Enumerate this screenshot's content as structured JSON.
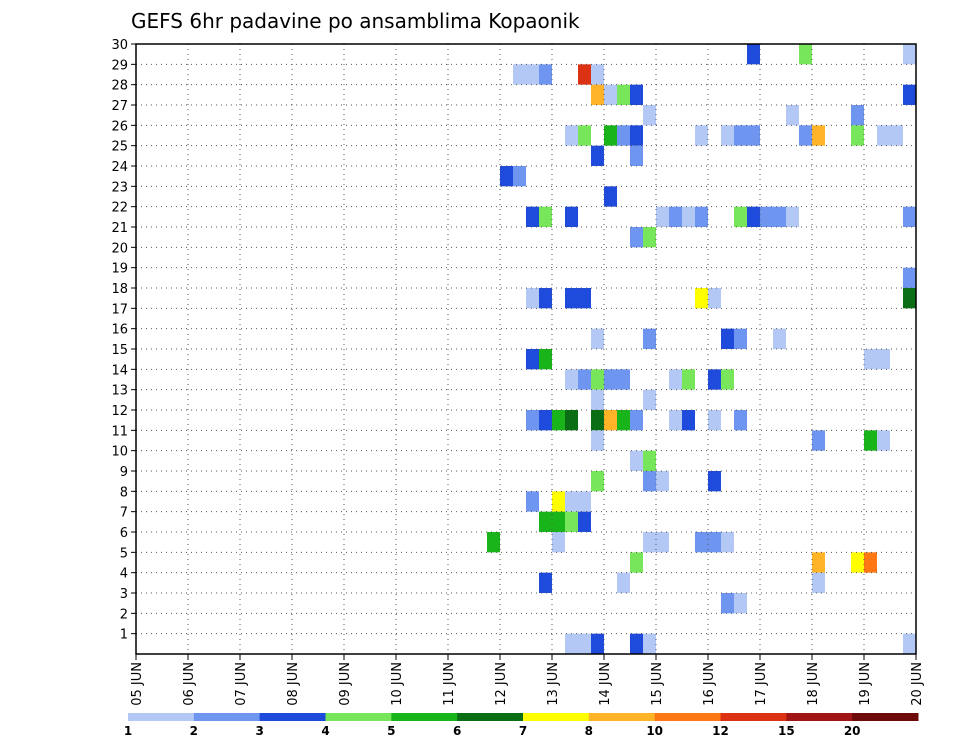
{
  "chart_data": {
    "type": "heatmap",
    "title": "GEFS 6hr padavine po ansamblima Kopaonik",
    "xlabel": "",
    "ylabel": "",
    "x_ticks": [
      "05 JUN",
      "06 JUN",
      "07 JUN",
      "08 JUN",
      "09 JUN",
      "10 JUN",
      "11 JUN",
      "12 JUN",
      "13 JUN",
      "14 JUN",
      "15 JUN",
      "16 JUN",
      "17 JUN",
      "18 JUN",
      "19 JUN",
      "20 JUN"
    ],
    "y_ticks": [
      "1",
      "2",
      "3",
      "4",
      "5",
      "6",
      "7",
      "8",
      "9",
      "10",
      "11",
      "12",
      "13",
      "14",
      "15",
      "16",
      "17",
      "18",
      "19",
      "20",
      "21",
      "22",
      "23",
      "24",
      "25",
      "26",
      "27",
      "28",
      "29",
      "30"
    ],
    "x_range": [
      "2024-06-05 00:00",
      "2024-06-20 00:00"
    ],
    "y_range": [
      0,
      30
    ],
    "grid": true,
    "time_step_hours": 6,
    "legend": {
      "placement": "bottom",
      "labels": [
        "1",
        "2",
        "3",
        "4",
        "5",
        "6",
        "7",
        "8",
        "10",
        "12",
        "15",
        "20"
      ],
      "colors": [
        "#b4c8f5",
        "#6e96f0",
        "#1e4bdc",
        "#78e65a",
        "#19b419",
        "#0a6e14",
        "#ffff00",
        "#ffb428",
        "#ff7814",
        "#dc3214",
        "#a01414",
        "#6e0a0a"
      ]
    },
    "cells_note": "Each cell: [day_offset from 05 JUN 00Z in days, ensemble member, color class index 0-11]",
    "cells": [
      [
        7.25,
        29,
        0
      ],
      [
        7.5,
        29,
        0
      ],
      [
        7.75,
        29,
        1
      ],
      [
        8.5,
        29,
        9
      ],
      [
        8.75,
        29,
        0
      ],
      [
        8.75,
        28,
        7
      ],
      [
        9.0,
        28,
        0
      ],
      [
        9.25,
        28,
        3
      ],
      [
        9.5,
        28,
        2
      ],
      [
        14.75,
        28,
        2
      ],
      [
        9.75,
        27,
        0
      ],
      [
        12.5,
        27,
        0
      ],
      [
        13.75,
        27,
        1
      ],
      [
        8.25,
        26,
        0
      ],
      [
        8.5,
        26,
        3
      ],
      [
        9.0,
        26,
        4
      ],
      [
        9.25,
        26,
        1
      ],
      [
        9.5,
        26,
        2
      ],
      [
        10.75,
        26,
        0
      ],
      [
        11.25,
        26,
        0
      ],
      [
        11.5,
        26,
        1
      ],
      [
        11.75,
        26,
        1
      ],
      [
        12.75,
        26,
        1
      ],
      [
        13.0,
        26,
        7
      ],
      [
        13.75,
        26,
        3
      ],
      [
        14.25,
        26,
        0
      ],
      [
        14.5,
        26,
        0
      ],
      [
        8.75,
        25,
        2
      ],
      [
        9.5,
        25,
        1
      ],
      [
        7.0,
        24,
        2
      ],
      [
        7.25,
        24,
        1
      ],
      [
        9.0,
        23,
        2
      ],
      [
        7.5,
        22,
        2
      ],
      [
        7.75,
        22,
        3
      ],
      [
        8.25,
        22,
        2
      ],
      [
        10.0,
        22,
        0
      ],
      [
        10.25,
        22,
        1
      ],
      [
        10.5,
        22,
        0
      ],
      [
        10.75,
        22,
        1
      ],
      [
        11.5,
        22,
        3
      ],
      [
        11.75,
        22,
        2
      ],
      [
        12.0,
        22,
        1
      ],
      [
        12.25,
        22,
        1
      ],
      [
        12.5,
        22,
        0
      ],
      [
        14.75,
        22,
        1
      ],
      [
        9.5,
        21,
        1
      ],
      [
        9.75,
        21,
        3
      ],
      [
        14.75,
        19,
        1
      ],
      [
        7.5,
        18,
        0
      ],
      [
        7.75,
        18,
        2
      ],
      [
        8.25,
        18,
        2
      ],
      [
        8.5,
        18,
        2
      ],
      [
        10.75,
        18,
        6
      ],
      [
        11.0,
        18,
        0
      ],
      [
        14.75,
        18,
        5
      ],
      [
        8.75,
        16,
        0
      ],
      [
        9.75,
        16,
        1
      ],
      [
        11.25,
        16,
        2
      ],
      [
        11.5,
        16,
        1
      ],
      [
        12.25,
        16,
        0
      ],
      [
        7.5,
        15,
        2
      ],
      [
        7.75,
        15,
        4
      ],
      [
        14.0,
        15,
        0
      ],
      [
        14.25,
        15,
        0
      ],
      [
        8.25,
        14,
        0
      ],
      [
        8.5,
        14,
        1
      ],
      [
        8.75,
        14,
        3
      ],
      [
        9.0,
        14,
        1
      ],
      [
        9.25,
        14,
        1
      ],
      [
        10.25,
        14,
        0
      ],
      [
        10.5,
        14,
        3
      ],
      [
        11.0,
        14,
        2
      ],
      [
        11.25,
        14,
        3
      ],
      [
        8.75,
        13,
        0
      ],
      [
        9.75,
        13,
        0
      ],
      [
        7.5,
        12,
        1
      ],
      [
        7.75,
        12,
        2
      ],
      [
        8.0,
        12,
        4
      ],
      [
        8.25,
        12,
        5
      ],
      [
        8.75,
        12,
        5
      ],
      [
        9.0,
        12,
        7
      ],
      [
        9.25,
        12,
        4
      ],
      [
        9.5,
        12,
        1
      ],
      [
        10.25,
        12,
        0
      ],
      [
        10.5,
        12,
        2
      ],
      [
        11.0,
        12,
        0
      ],
      [
        11.5,
        12,
        1
      ],
      [
        8.75,
        11,
        0
      ],
      [
        13.0,
        11,
        1
      ],
      [
        14.0,
        11,
        4
      ],
      [
        14.25,
        11,
        0
      ],
      [
        9.5,
        10,
        0
      ],
      [
        9.75,
        10,
        3
      ],
      [
        8.75,
        9,
        3
      ],
      [
        9.75,
        9,
        1
      ],
      [
        10.0,
        9,
        0
      ],
      [
        11.0,
        9,
        2
      ],
      [
        7.5,
        8,
        1
      ],
      [
        8.0,
        8,
        6
      ],
      [
        8.25,
        8,
        0
      ],
      [
        8.5,
        8,
        0
      ],
      [
        7.75,
        7,
        4
      ],
      [
        8.0,
        7,
        4
      ],
      [
        8.25,
        7,
        3
      ],
      [
        8.5,
        7,
        2
      ],
      [
        6.75,
        6,
        4
      ],
      [
        8.0,
        6,
        0
      ],
      [
        9.75,
        6,
        0
      ],
      [
        10.0,
        6,
        0
      ],
      [
        10.75,
        6,
        1
      ],
      [
        11.0,
        6,
        1
      ],
      [
        11.25,
        6,
        0
      ],
      [
        9.5,
        5,
        3
      ],
      [
        13.0,
        5,
        7
      ],
      [
        13.75,
        5,
        6
      ],
      [
        14.0,
        5,
        8
      ],
      [
        7.75,
        4,
        2
      ],
      [
        9.25,
        4,
        0
      ],
      [
        13.0,
        4,
        0
      ],
      [
        11.25,
        3,
        1
      ],
      [
        11.5,
        3,
        0
      ],
      [
        8.25,
        1,
        0
      ],
      [
        8.5,
        1,
        0
      ],
      [
        8.75,
        1,
        2
      ],
      [
        9.5,
        1,
        2
      ],
      [
        9.75,
        1,
        0
      ],
      [
        14.75,
        1,
        0
      ],
      [
        11.75,
        30,
        2
      ],
      [
        12.75,
        30,
        3
      ],
      [
        14.75,
        30,
        0
      ]
    ]
  }
}
